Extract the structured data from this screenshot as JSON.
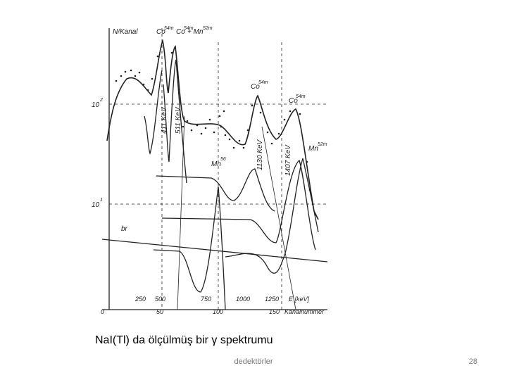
{
  "figure": {
    "y_label": "N/Kanal",
    "peaks": [
      {
        "base": "Co",
        "sup": "54m"
      },
      {
        "base": "Co",
        "sup": "54m"
      },
      {
        "base": "+ Mn",
        "sup": "52m"
      },
      {
        "base": "Co",
        "sup": "54m"
      },
      {
        "base": "Co",
        "sup": "54m"
      },
      {
        "base": "Mn",
        "sup": "52m"
      },
      {
        "base": "Mn",
        "sup": "56"
      }
    ],
    "energies": [
      "411 KeV",
      "511 KeV",
      "1130 KeV",
      "1407 KeV"
    ],
    "decades": [
      {
        "base": "10",
        "sup": "2"
      },
      {
        "base": "10",
        "sup": "1"
      }
    ],
    "background": "br",
    "energy_ticks": [
      "250",
      "500",
      "750",
      "1000",
      "1250"
    ],
    "energy_label": "E [keV]",
    "channel_ticks": [
      "0",
      "50",
      "100",
      "150"
    ],
    "channel_label": "Kanalnummer"
  },
  "caption": "NaI(Tl) da ölçülmüş bir γ spektrumu",
  "footer": "dedektörler",
  "page_number": "28"
}
